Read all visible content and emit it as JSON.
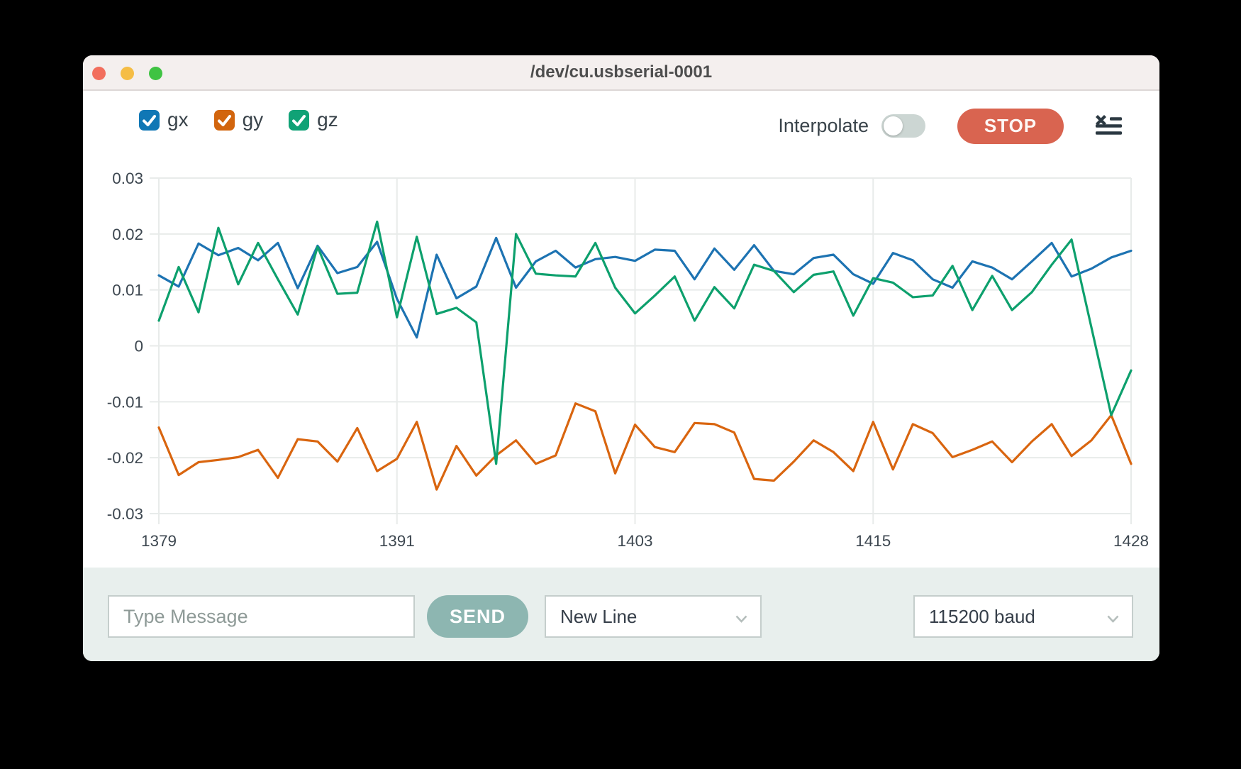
{
  "window": {
    "title": "/dev/cu.usbserial-0001",
    "traffic_lights": [
      "close",
      "minimize",
      "zoom"
    ]
  },
  "toolbar": {
    "series_toggles": [
      {
        "label": "gx",
        "checked": true,
        "color": "#1077b5"
      },
      {
        "label": "gy",
        "checked": true,
        "color": "#d2650e"
      },
      {
        "label": "gz",
        "checked": true,
        "color": "#10a276"
      }
    ],
    "interpolate_label": "Interpolate",
    "interpolate_enabled": false,
    "stop_label": "STOP",
    "stop_color": "#d96450",
    "icons": [
      "clear-list-icon"
    ]
  },
  "chart_data": {
    "type": "line",
    "x_range": [
      1379,
      1428
    ],
    "xticks": [
      1379,
      1391,
      1403,
      1415,
      1428
    ],
    "xtick_labels": [
      "1379",
      "1391",
      "1403",
      "1415",
      "1428"
    ],
    "ylim": [
      -0.03,
      0.03
    ],
    "yticks": [
      0.03,
      0.02,
      0.01,
      0,
      -0.01,
      -0.02,
      -0.03
    ],
    "ytick_labels": [
      "0.03",
      "0.02",
      "0.01",
      "0",
      "-0.01",
      "-0.02",
      "-0.03"
    ],
    "grid": true,
    "legend_position": "toolbar-top-left",
    "series": [
      {
        "name": "gx",
        "color": "#1d73b2",
        "values": [
          0.0126,
          0.0106,
          0.0183,
          0.0162,
          0.0175,
          0.0153,
          0.0184,
          0.0103,
          0.0179,
          0.013,
          0.0141,
          0.0186,
          0.0084,
          0.0015,
          0.0163,
          0.0085,
          0.0106,
          0.0193,
          0.0104,
          0.0151,
          0.017,
          0.014,
          0.0155,
          0.0159,
          0.0152,
          0.0172,
          0.017,
          0.0119,
          0.0174,
          0.0136,
          0.018,
          0.0134,
          0.0128,
          0.0157,
          0.0163,
          0.0128,
          0.0111,
          0.0166,
          0.0153,
          0.0119,
          0.0104,
          0.0151,
          0.014,
          0.0119,
          0.0151,
          0.0184,
          0.0124,
          0.0138,
          0.0158,
          0.017
        ]
      },
      {
        "name": "gy",
        "color": "#d9650f",
        "values": [
          -0.0146,
          -0.0231,
          -0.0208,
          -0.0204,
          -0.0199,
          -0.0186,
          -0.0236,
          -0.0167,
          -0.0171,
          -0.0207,
          -0.0147,
          -0.0224,
          -0.0202,
          -0.0136,
          -0.0257,
          -0.0179,
          -0.0232,
          -0.0196,
          -0.0169,
          -0.0211,
          -0.0196,
          -0.0103,
          -0.0117,
          -0.0228,
          -0.0141,
          -0.0181,
          -0.019,
          -0.0138,
          -0.014,
          -0.0155,
          -0.0238,
          -0.0241,
          -0.0207,
          -0.0169,
          -0.019,
          -0.0224,
          -0.0136,
          -0.0221,
          -0.014,
          -0.0156,
          -0.0199,
          -0.0186,
          -0.0171,
          -0.0208,
          -0.0171,
          -0.014,
          -0.0197,
          -0.0169,
          -0.0124,
          -0.0211
        ]
      },
      {
        "name": "gz",
        "color": "#0da06d",
        "values": [
          0.0045,
          0.0141,
          0.006,
          0.0211,
          0.011,
          0.0184,
          0.0119,
          0.0056,
          0.0177,
          0.0093,
          0.0095,
          0.0222,
          0.0051,
          0.0195,
          0.0057,
          0.0068,
          0.0042,
          -0.0211,
          0.02,
          0.0129,
          0.0126,
          0.0124,
          0.0184,
          0.0104,
          0.0058,
          0.009,
          0.0124,
          0.0045,
          0.0105,
          0.0067,
          0.0145,
          0.0134,
          0.0096,
          0.0127,
          0.0133,
          0.0054,
          0.0121,
          0.0113,
          0.0087,
          0.009,
          0.0143,
          0.0064,
          0.0125,
          0.0064,
          0.0096,
          0.0145,
          0.019,
          0.0033,
          -0.0124,
          -0.0044
        ]
      }
    ]
  },
  "footer": {
    "message_placeholder": "Type Message",
    "send_label": "SEND",
    "send_color": "#8db6b1",
    "line_ending_selected": "New Line",
    "baud_selected": "115200 baud"
  }
}
